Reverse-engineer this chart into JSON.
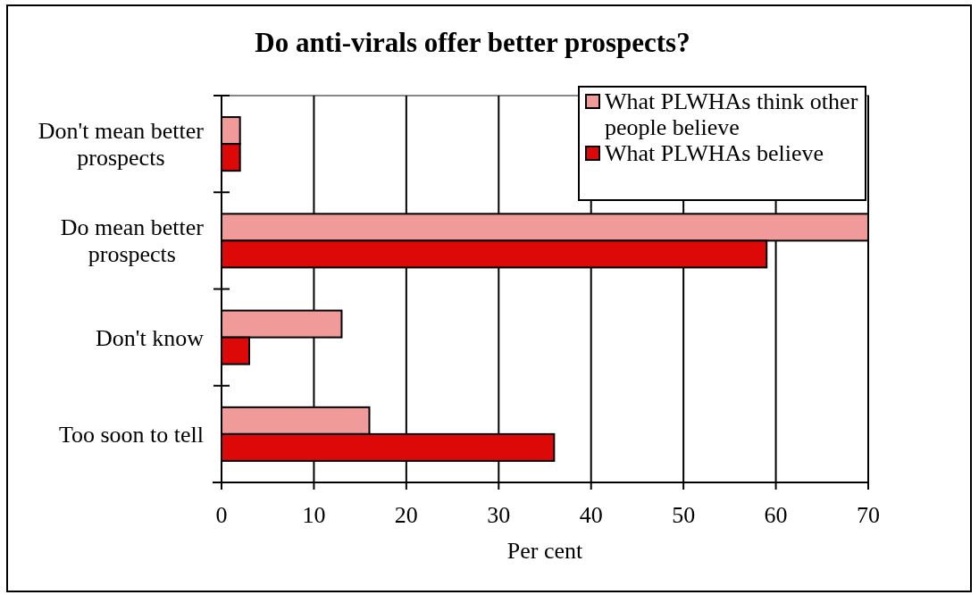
{
  "chart_data": {
    "type": "bar",
    "orientation": "horizontal",
    "title": "Do anti-virals offer better prospects?",
    "xlabel": "Per cent",
    "categories": [
      "Don't mean better prospects",
      "Do mean better prospects",
      "Don't know",
      "Too soon to tell"
    ],
    "series": [
      {
        "name": "What PLWHAs think other people believe",
        "color": "#f09a9a",
        "values": [
          2,
          70,
          13,
          16
        ]
      },
      {
        "name": "What PLWHAs believe",
        "color": "#dd0808",
        "values": [
          2,
          59,
          3,
          36
        ]
      }
    ],
    "xlim": [
      0,
      70
    ],
    "xticks": [
      0,
      10,
      20,
      30,
      40,
      50,
      60,
      70
    ],
    "grid": "x",
    "legend": "top right"
  }
}
